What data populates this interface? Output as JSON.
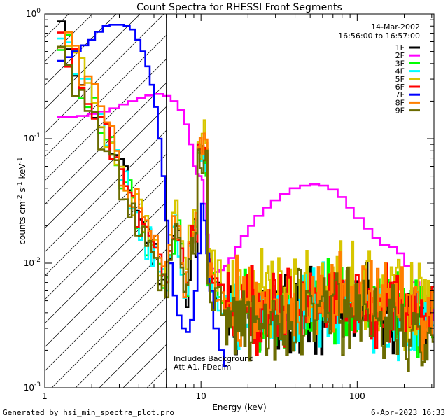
{
  "chart_data": {
    "type": "line",
    "title": "Count Spectra for RHESSI Front Segments",
    "xlabel": "Energy (keV)",
    "ylabel_base": "counts cm",
    "ylabel_sup1": "-2",
    "ylabel_mid": " s",
    "ylabel_sup2": "-1",
    "ylabel_end": " keV",
    "ylabel_sup3": "-1",
    "xscale": "log",
    "yscale": "log",
    "xlim": [
      1,
      310
    ],
    "ylim": [
      0.001,
      1.0
    ],
    "x_ticks": [
      {
        "value": 1,
        "label": "1"
      },
      {
        "value": 10,
        "label": "10"
      },
      {
        "value": 100,
        "label": "100"
      }
    ],
    "y_ticks": [
      {
        "value": 0.001,
        "base": "10",
        "exp": "-3"
      },
      {
        "value": 0.01,
        "base": "10",
        "exp": "-2"
      },
      {
        "value": 0.1,
        "base": "10",
        "exp": "-1"
      },
      {
        "value": 1.0,
        "base": "10",
        "exp": "0"
      }
    ],
    "date_label": "14-Mar-2002",
    "time_label": "16:56:00 to 16:57:00",
    "annotation": [
      "Includes Background",
      "Att A1, FDecim"
    ],
    "hatched_region": [
      1,
      6
    ],
    "series": [
      {
        "name": "1F",
        "color": "#000000",
        "mode": "segment",
        "seed": 11,
        "lowE": 0.85,
        "offset": 1.0
      },
      {
        "name": "2F",
        "color": "#ff00ff",
        "mode": "atten",
        "seed": 22,
        "x": [
          1.2,
          1.4,
          1.6,
          1.9,
          2.2,
          2.6,
          3.0,
          3.4,
          3.9,
          4.4,
          5.0,
          5.7,
          6.4,
          7.1,
          7.8,
          8.4,
          8.9,
          9.3,
          9.7,
          10.1,
          10.4,
          10.8,
          11.2,
          11.7,
          12.3,
          13.0,
          14.0,
          15.0,
          16.5,
          18.0,
          20.0,
          22.0,
          25.0,
          28.0,
          32.0,
          37.0,
          43.0,
          50.0,
          57.0,
          65.0,
          75.0,
          85.0,
          95.0,
          110.0,
          125.0,
          140.0,
          160.0,
          180.0,
          200.0,
          225.0,
          250.0,
          280.0,
          305.0
        ],
        "y": [
          0.15,
          0.15,
          0.152,
          0.158,
          0.165,
          0.175,
          0.188,
          0.2,
          0.212,
          0.222,
          0.228,
          0.22,
          0.2,
          0.17,
          0.13,
          0.09,
          0.06,
          0.052,
          0.05,
          0.047,
          0.03,
          0.017,
          0.011,
          0.009,
          0.0085,
          0.0088,
          0.0095,
          0.011,
          0.0135,
          0.0165,
          0.02,
          0.024,
          0.028,
          0.032,
          0.036,
          0.04,
          0.042,
          0.043,
          0.042,
          0.039,
          0.034,
          0.028,
          0.023,
          0.019,
          0.016,
          0.014,
          0.0135,
          0.012,
          0.0095,
          0.007,
          0.0055,
          0.0043,
          0.0035
        ]
      },
      {
        "name": "3F",
        "color": "#00ff00",
        "mode": "segment",
        "seed": 33,
        "lowE": 0.75,
        "offset": 1.05
      },
      {
        "name": "4F",
        "color": "#00ffff",
        "mode": "segment",
        "seed": 44,
        "lowE": 0.8,
        "offset": 1.0
      },
      {
        "name": "5F",
        "color": "#d7c600",
        "mode": "segment",
        "seed": 55,
        "lowE": 0.6,
        "offset": 1.5
      },
      {
        "name": "6F",
        "color": "#ff0000",
        "mode": "segment",
        "seed": 66,
        "lowE": 0.7,
        "offset": 1.1
      },
      {
        "name": "7F",
        "color": "#0000ff",
        "mode": "atten",
        "seed": 77,
        "x": [
          1.2,
          1.35,
          1.5,
          1.7,
          1.9,
          2.1,
          2.35,
          2.6,
          2.9,
          3.2,
          3.5,
          3.8,
          4.1,
          4.4,
          4.7,
          5.0,
          5.3,
          5.6,
          5.9,
          6.2,
          6.6,
          7.0,
          7.5,
          8.0,
          8.5,
          9.0,
          9.5,
          10.0,
          10.4,
          10.8,
          11.3,
          12.0,
          13.0,
          14.0
        ],
        "y": [
          0.42,
          0.45,
          0.5,
          0.56,
          0.62,
          0.72,
          0.8,
          0.82,
          0.82,
          0.8,
          0.75,
          0.62,
          0.5,
          0.38,
          0.27,
          0.18,
          0.1,
          0.05,
          0.022,
          0.01,
          0.0055,
          0.0038,
          0.003,
          0.0028,
          0.0035,
          0.006,
          0.012,
          0.03,
          0.022,
          0.012,
          0.006,
          0.003,
          0.002,
          0.0015
        ]
      },
      {
        "name": "8F",
        "color": "#ff7f00",
        "mode": "segment",
        "seed": 88,
        "lowE": 0.8,
        "offset": 1.2
      },
      {
        "name": "9F",
        "color": "#6b6b00",
        "mode": "segment",
        "seed": 99,
        "lowE": 0.7,
        "offset": 0.9
      }
    ]
  },
  "footer": {
    "left": "Generated by hsi_min_spectra_plot.pro",
    "right": "6-Apr-2023 16:33"
  }
}
